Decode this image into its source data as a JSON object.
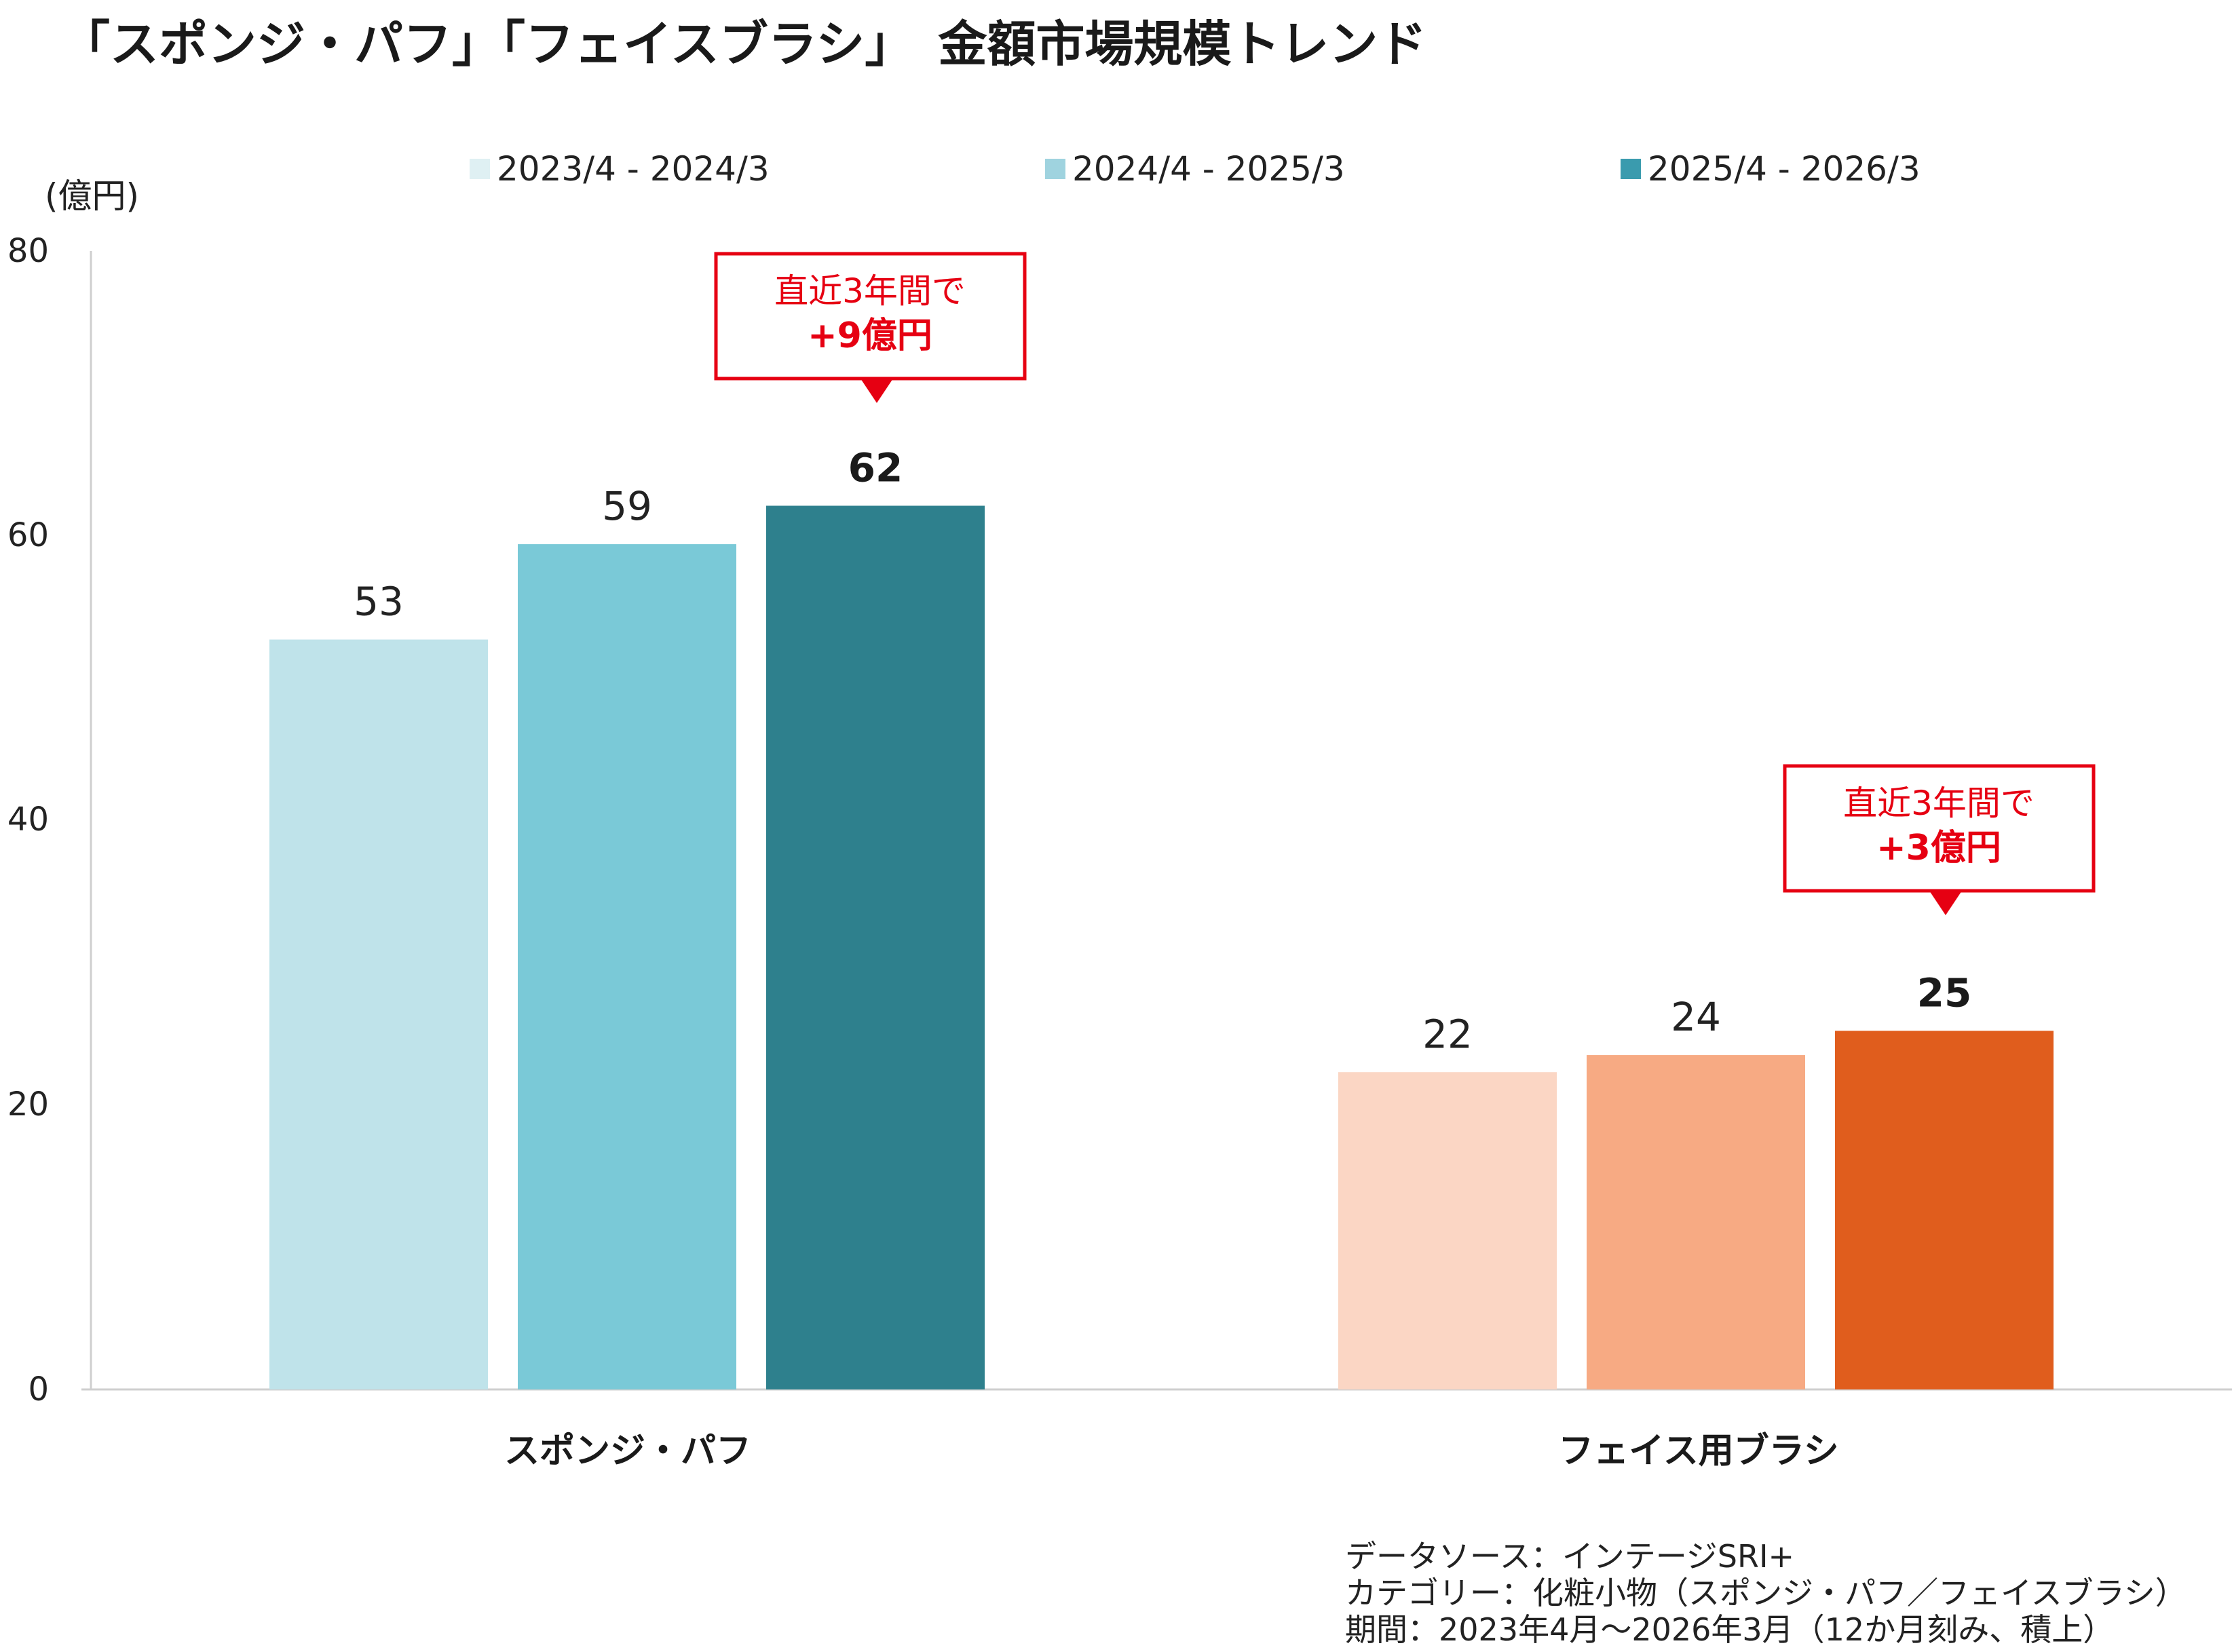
{
  "title": "「スポンジ・パフ」「フェイスブラシ」　金額市場規模トレンド",
  "unit_label": "(億円)",
  "legend": [
    {
      "label": "2023/4 - 2024/3",
      "color": "#dff0f3"
    },
    {
      "label": "2024/4 - 2025/3",
      "color": "#9fd3df"
    },
    {
      "label": "2025/4 - 2026/3",
      "color": "#3a9bae"
    }
  ],
  "chart_data": {
    "type": "bar",
    "categories": [
      "スポンジ・パフ",
      "フェイス用ブラシ"
    ],
    "series": [
      {
        "name": "2023/4 - 2024/3",
        "values": [
          52.7,
          22.3
        ]
      },
      {
        "name": "2024/4 - 2025/3",
        "values": [
          59.4,
          23.5
        ]
      },
      {
        "name": "2025/4 - 2026/3",
        "values": [
          62.1,
          25.2
        ]
      }
    ],
    "value_labels": [
      [
        "53",
        "59",
        "62"
      ],
      [
        "22",
        "24",
        "25"
      ]
    ],
    "bar_colors": [
      [
        "#bfe3ea",
        "#7ac9d7",
        "#2e808d"
      ],
      [
        "#fbd6c4",
        "#f7aa83",
        "#e05d1d"
      ]
    ],
    "ylim": [
      0,
      80
    ],
    "yticks": [
      "0",
      "20",
      "40",
      "60",
      "80"
    ],
    "ylabel": "(億円)",
    "grid": false,
    "legend_position": "top-center"
  },
  "callouts": [
    {
      "line1": "直近3年間で",
      "line2": "+9億円"
    },
    {
      "line1": "直近3年間で",
      "line2": "+3億円"
    }
  ],
  "footer": [
    "データソース：インテージSRI+",
    "カテゴリー：化粧小物（スポンジ・パフ／フェイスブラシ）",
    "期間：2023年4月～2026年3月（12か月刻み、積上）"
  ],
  "accent_color": "#e60012"
}
